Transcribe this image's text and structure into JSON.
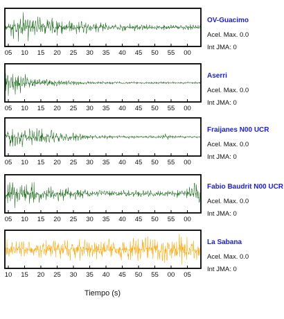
{
  "chart_data": {
    "type": "line",
    "xlabel": "Tiempo (s)",
    "acel_label": "Acel. Max.",
    "int_label": "Int JMA:",
    "panels": [
      {
        "title": "OV-Guacimo",
        "acel": "0.0",
        "jma": "0",
        "color": "#1a6b1a",
        "ticks": [
          "05",
          "10",
          "15",
          "20",
          "25",
          "30",
          "35",
          "40",
          "45",
          "50",
          "55",
          "00"
        ],
        "envelope": [
          [
            0,
            0.15
          ],
          [
            0.05,
            1.0
          ],
          [
            0.15,
            0.75
          ],
          [
            0.3,
            0.45
          ],
          [
            0.55,
            0.25
          ],
          [
            0.8,
            0.18
          ],
          [
            1,
            0.17
          ]
        ]
      },
      {
        "title": "Aserri",
        "acel": "0.0",
        "jma": "0",
        "color": "#1a6b1a",
        "ticks": [
          "05",
          "10",
          "15",
          "20",
          "25",
          "30",
          "35",
          "40",
          "45",
          "50",
          "55",
          "00"
        ],
        "envelope": [
          [
            0,
            0.85
          ],
          [
            0.06,
            0.7
          ],
          [
            0.15,
            0.35
          ],
          [
            0.3,
            0.15
          ],
          [
            0.5,
            0.08
          ],
          [
            1,
            0.07
          ]
        ]
      },
      {
        "title": "Fraijanes N00 UCR",
        "acel": "0.0",
        "jma": "0",
        "color": "#1a6b1a",
        "ticks": [
          "05",
          "10",
          "15",
          "20",
          "25",
          "30",
          "35",
          "40",
          "45",
          "50",
          "55",
          "00"
        ],
        "envelope": [
          [
            0,
            0.5
          ],
          [
            0.05,
            0.65
          ],
          [
            0.15,
            0.55
          ],
          [
            0.3,
            0.3
          ],
          [
            0.5,
            0.12
          ],
          [
            0.78,
            0.1
          ],
          [
            0.82,
            0.2
          ],
          [
            0.86,
            0.1
          ],
          [
            1,
            0.06
          ]
        ]
      },
      {
        "title": "Fabio Baudrit N00 UCR",
        "acel": "0.0",
        "jma": "0",
        "color": "#1a6b1a",
        "ticks": [
          "05",
          "10",
          "15",
          "20",
          "25",
          "30",
          "35",
          "40",
          "45",
          "50",
          "55",
          "00"
        ],
        "envelope": [
          [
            0,
            0.95
          ],
          [
            0.1,
            0.85
          ],
          [
            0.25,
            0.45
          ],
          [
            0.45,
            0.25
          ],
          [
            0.8,
            0.2
          ],
          [
            0.93,
            0.3
          ],
          [
            0.98,
            0.85
          ],
          [
            1,
            0.8
          ]
        ]
      },
      {
        "title": "La Sabana",
        "acel": "0.0",
        "jma": "0",
        "color": "#ffa500",
        "ticks": [
          "10",
          "15",
          "20",
          "25",
          "30",
          "35",
          "40",
          "45",
          "50",
          "55",
          "00",
          "05"
        ],
        "envelope": [
          [
            0,
            0.6
          ],
          [
            0.3,
            0.65
          ],
          [
            0.6,
            0.7
          ],
          [
            0.85,
            0.8
          ],
          [
            0.92,
            0.95
          ],
          [
            1,
            0.75
          ]
        ]
      }
    ]
  }
}
